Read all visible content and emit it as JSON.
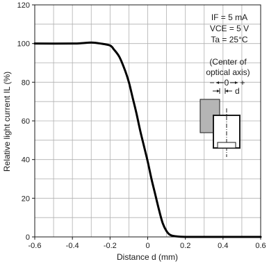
{
  "chart_data": {
    "type": "line",
    "xlabel": "Distance d (mm)",
    "ylabel": "Relative light current IL (%)",
    "xlim": [
      -0.6,
      0.6
    ],
    "ylim": [
      0,
      120
    ],
    "x_ticks": [
      "-0.6",
      "-0.4",
      "-0.2",
      "0",
      "0.2",
      "0.4",
      "0.6"
    ],
    "y_ticks": [
      "0",
      "20",
      "40",
      "60",
      "80",
      "100",
      "120"
    ],
    "grid": true,
    "series": [
      {
        "x": [
          -0.6,
          -0.4,
          -0.35,
          -0.3,
          -0.25,
          -0.2,
          -0.18,
          -0.15,
          -0.12,
          -0.1,
          -0.08,
          -0.06,
          -0.04,
          -0.02,
          0.0,
          0.02,
          0.04,
          0.06,
          0.08,
          0.1,
          0.12,
          0.15,
          0.2,
          0.3,
          0.4,
          0.6
        ],
        "y": [
          100,
          100,
          100.2,
          100.5,
          100,
          99,
          97,
          93,
          86,
          80,
          72,
          64,
          55,
          47,
          39,
          30,
          22,
          14,
          7,
          3,
          1,
          0.3,
          0,
          0,
          0,
          0
        ]
      }
    ],
    "conditions": {
      "if_label": "IF = 5 mA",
      "vce_label": "VCE = 5 V",
      "ta_label": "Ta = 25°C"
    },
    "annotation": {
      "line1": "(Center of",
      "line2": "optical axis)",
      "arrow_labels": [
        "−",
        "0",
        "+"
      ],
      "d_label": "d"
    }
  }
}
